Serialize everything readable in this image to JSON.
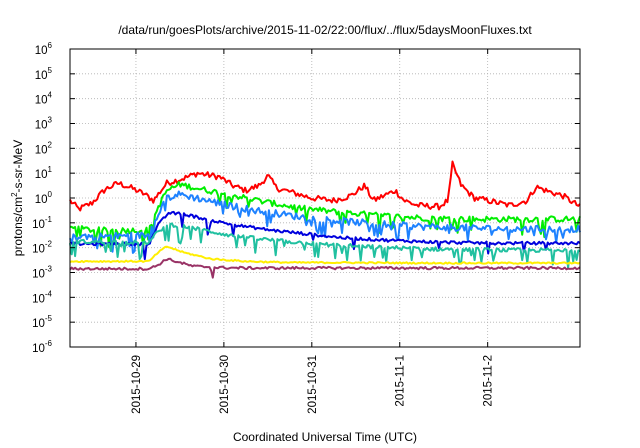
{
  "chart_data": {
    "type": "line",
    "title": "/data/run/goesPlots/archive/2015-11-02/22:00/flux/../flux/5daysMoonFluxes.txt",
    "xlabel": "Coordinated Universal Time (UTC)",
    "ylabel": {
      "pre": "protons/cm",
      "sup": "2",
      "post": "-s-sr-MeV"
    },
    "yscale": "log",
    "ylim": [
      1e-06,
      1000000.0
    ],
    "xlim": [
      0,
      5.8
    ],
    "x_unit": "days since 2015-10-28 06:00 UTC",
    "grid": true,
    "legend": "none",
    "y_ticks": [
      {
        "base": "10",
        "exp": "-6",
        "value": -6
      },
      {
        "base": "10",
        "exp": "-5",
        "value": -5
      },
      {
        "base": "10",
        "exp": "-4",
        "value": -4
      },
      {
        "base": "10",
        "exp": "-3",
        "value": -3
      },
      {
        "base": "10",
        "exp": "-2",
        "value": -2
      },
      {
        "base": "10",
        "exp": "-1",
        "value": -1
      },
      {
        "base": "10",
        "exp": "0",
        "value": 0
      },
      {
        "base": "10",
        "exp": "1",
        "value": 1
      },
      {
        "base": "10",
        "exp": "2",
        "value": 2
      },
      {
        "base": "10",
        "exp": "3",
        "value": 3
      },
      {
        "base": "10",
        "exp": "4",
        "value": 4
      },
      {
        "base": "10",
        "exp": "5",
        "value": 5
      },
      {
        "base": "10",
        "exp": "6",
        "value": 6
      }
    ],
    "x_ticks": [
      {
        "label": "2015-10-29",
        "x": 0.75
      },
      {
        "label": "2015-10-30",
        "x": 1.75
      },
      {
        "label": "2015-10-31",
        "x": 2.75
      },
      {
        "label": "2015-11-1",
        "x": 3.75
      },
      {
        "label": "2015-11-2",
        "x": 4.75
      }
    ],
    "series": [
      {
        "color": "#ff0000",
        "noise": 0.12,
        "spike_prob": 0.0,
        "points": [
          [
            0,
            -0.1
          ],
          [
            0.1,
            -0.45
          ],
          [
            0.25,
            -0.2
          ],
          [
            0.4,
            0.35
          ],
          [
            0.55,
            0.6
          ],
          [
            0.7,
            0.4
          ],
          [
            0.85,
            0.15
          ],
          [
            0.95,
            -0.1
          ],
          [
            1.1,
            0.6
          ],
          [
            1.3,
            0.8
          ],
          [
            1.45,
            1.0
          ],
          [
            1.7,
            0.85
          ],
          [
            1.85,
            0.5
          ],
          [
            2.0,
            0.3
          ],
          [
            2.15,
            0.5
          ],
          [
            2.25,
            0.9
          ],
          [
            2.35,
            0.4
          ],
          [
            2.55,
            0.2
          ],
          [
            2.75,
            0.0
          ],
          [
            3.0,
            -0.1
          ],
          [
            3.2,
            0.1
          ],
          [
            3.35,
            0.5
          ],
          [
            3.45,
            -0.1
          ],
          [
            3.7,
            0.3
          ],
          [
            3.8,
            -0.1
          ],
          [
            3.95,
            -0.3
          ],
          [
            4.2,
            -0.35
          ],
          [
            4.3,
            -0.1
          ],
          [
            4.35,
            1.35
          ],
          [
            4.45,
            0.5
          ],
          [
            4.6,
            0.0
          ],
          [
            4.75,
            -0.1
          ],
          [
            5.0,
            -0.3
          ],
          [
            5.2,
            -0.1
          ],
          [
            5.3,
            0.45
          ],
          [
            5.45,
            0.25
          ],
          [
            5.6,
            0.1
          ],
          [
            5.8,
            -0.35
          ]
        ]
      },
      {
        "color": "#00ee00",
        "noise": 0.12,
        "spike_prob": 0.1,
        "points": [
          [
            0,
            -1.2
          ],
          [
            0.3,
            -1.3
          ],
          [
            0.9,
            -1.3
          ],
          [
            1.0,
            -0.4
          ],
          [
            1.1,
            0.3
          ],
          [
            1.25,
            0.55
          ],
          [
            1.5,
            0.35
          ],
          [
            1.8,
            0.15
          ],
          [
            2.2,
            -0.15
          ],
          [
            2.6,
            -0.4
          ],
          [
            3.0,
            -0.55
          ],
          [
            3.5,
            -0.7
          ],
          [
            4.0,
            -0.8
          ],
          [
            4.5,
            -0.85
          ],
          [
            5.0,
            -0.85
          ],
          [
            5.8,
            -0.85
          ]
        ]
      },
      {
        "color": "#1e82ff",
        "noise": 0.14,
        "spike_prob": 0.12,
        "points": [
          [
            0,
            -1.5
          ],
          [
            0.3,
            -1.55
          ],
          [
            0.9,
            -1.5
          ],
          [
            1.0,
            -0.6
          ],
          [
            1.1,
            0.0
          ],
          [
            1.25,
            0.15
          ],
          [
            1.5,
            -0.05
          ],
          [
            1.8,
            -0.3
          ],
          [
            2.2,
            -0.55
          ],
          [
            2.6,
            -0.75
          ],
          [
            3.0,
            -0.9
          ],
          [
            3.5,
            -1.05
          ],
          [
            4.0,
            -1.15
          ],
          [
            4.5,
            -1.2
          ],
          [
            5.0,
            -1.25
          ],
          [
            5.8,
            -1.25
          ]
        ]
      },
      {
        "color": "#0000dd",
        "noise": 0.06,
        "spike_prob": 0.05,
        "points": [
          [
            0,
            -1.85
          ],
          [
            0.9,
            -1.85
          ],
          [
            1.0,
            -1.1
          ],
          [
            1.12,
            -0.6
          ],
          [
            1.3,
            -0.65
          ],
          [
            1.6,
            -0.9
          ],
          [
            1.9,
            -1.1
          ],
          [
            2.3,
            -1.3
          ],
          [
            2.7,
            -1.45
          ],
          [
            3.1,
            -1.6
          ],
          [
            3.6,
            -1.7
          ],
          [
            4.2,
            -1.78
          ],
          [
            4.8,
            -1.82
          ],
          [
            5.8,
            -1.82
          ]
        ]
      },
      {
        "color": "#20c0a0",
        "noise": 0.08,
        "spike_prob": 0.15,
        "points": [
          [
            0,
            -1.75
          ],
          [
            0.9,
            -1.8
          ],
          [
            1.0,
            -1.35
          ],
          [
            1.12,
            -1.05
          ],
          [
            1.3,
            -1.15
          ],
          [
            1.6,
            -1.35
          ],
          [
            1.9,
            -1.55
          ],
          [
            2.3,
            -1.7
          ],
          [
            2.8,
            -1.85
          ],
          [
            3.3,
            -1.95
          ],
          [
            4.0,
            -2.05
          ],
          [
            5.0,
            -2.1
          ],
          [
            5.8,
            -2.1
          ]
        ]
      },
      {
        "color": "#ffee00",
        "noise": 0.03,
        "spike_prob": 0.0,
        "points": [
          [
            0,
            -2.55
          ],
          [
            0.9,
            -2.55
          ],
          [
            1.0,
            -2.2
          ],
          [
            1.1,
            -1.95
          ],
          [
            1.3,
            -2.2
          ],
          [
            1.6,
            -2.45
          ],
          [
            2.0,
            -2.55
          ],
          [
            2.5,
            -2.6
          ],
          [
            3.0,
            -2.6
          ],
          [
            4.0,
            -2.62
          ],
          [
            5.0,
            -2.62
          ],
          [
            5.8,
            -2.62
          ]
        ]
      },
      {
        "color": "#993366",
        "noise": 0.05,
        "spike_prob": 0.0,
        "points": [
          [
            0,
            -2.85
          ],
          [
            0.9,
            -2.85
          ],
          [
            1.0,
            -2.7
          ],
          [
            1.1,
            -2.45
          ],
          [
            1.25,
            -2.6
          ],
          [
            1.4,
            -2.75
          ],
          [
            1.6,
            -2.78
          ],
          [
            1.62,
            -3.25
          ],
          [
            1.64,
            -2.8
          ],
          [
            2.0,
            -2.82
          ],
          [
            3.0,
            -2.82
          ],
          [
            4.0,
            -2.82
          ],
          [
            5.0,
            -2.82
          ],
          [
            5.8,
            -2.82
          ]
        ]
      }
    ]
  }
}
